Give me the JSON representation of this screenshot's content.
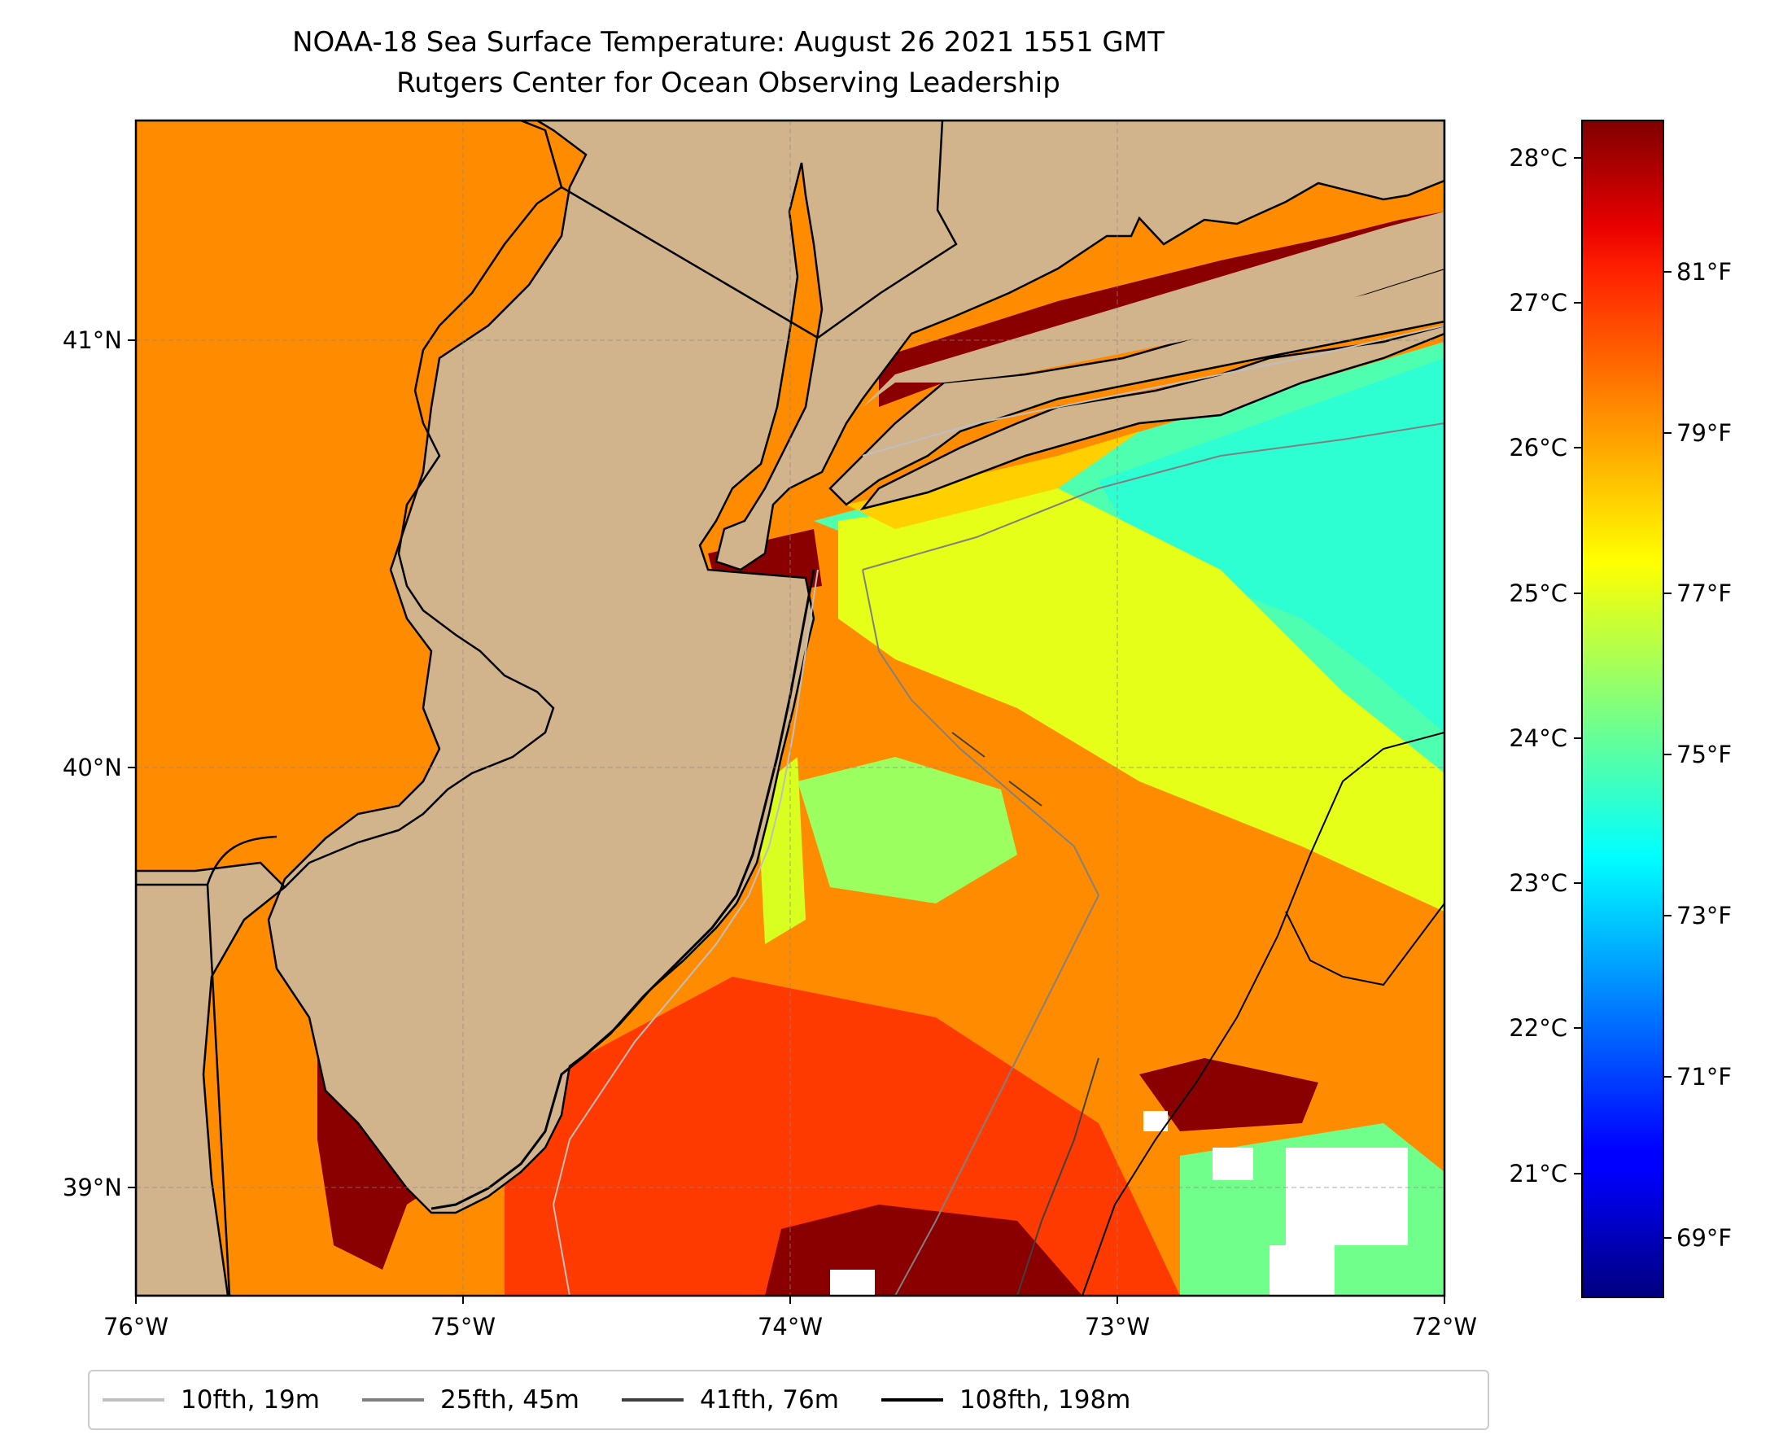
{
  "title": {
    "line1": "NOAA-18 Sea Surface Temperature: August 26 2021 1551 GMT",
    "line2": "Rutgers Center for Ocean Observing Leadership"
  },
  "map": {
    "land_color": "#D2B48C",
    "lon_range": [
      -76,
      -72
    ],
    "lat_range": [
      38.75,
      41.5
    ],
    "x_ticks": [
      "76°W",
      "75°W",
      "74°W",
      "73°W",
      "72°W"
    ],
    "y_ticks": [
      "41°N",
      "40°N",
      "39°N"
    ],
    "grid": true
  },
  "colorbar": {
    "colormap": "jet",
    "celsius_ticks": [
      "28°C",
      "27°C",
      "26°C",
      "25°C",
      "24°C",
      "23°C",
      "22°C",
      "21°C"
    ],
    "fahrenheit_ticks": [
      "81°F",
      "79°F",
      "77°F",
      "75°F",
      "73°F",
      "71°F",
      "69°F"
    ],
    "range_celsius": [
      20.2,
      28.3
    ]
  },
  "legend": {
    "items": [
      {
        "label": "10fth, 19m",
        "color": "#bfbfbf"
      },
      {
        "label": "25fth, 45m",
        "color": "#808080"
      },
      {
        "label": "41fth, 76m",
        "color": "#404040"
      },
      {
        "label": "108fth, 198m",
        "color": "#000000"
      }
    ]
  }
}
